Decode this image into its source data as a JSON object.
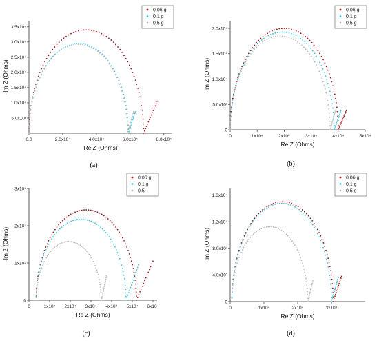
{
  "colors": {
    "series_006": "#a31414",
    "series_01": "#3cc3e4",
    "series_05": "#b8b8b8",
    "axis": "#333333"
  },
  "chart_data": [
    {
      "type": "scatter",
      "panel_label": "(a)",
      "xlabel": "Re Z (Ohms)",
      "ylabel": "-Im Z (Ohms)",
      "xlim": [
        0,
        85000
      ],
      "ylim": [
        0,
        37000
      ],
      "xticks": [
        0,
        20000,
        40000,
        60000,
        80000
      ],
      "xtick_labels": [
        "0.0",
        "2.0x10⁴",
        "4.0x10⁴",
        "6.0x10⁴",
        "8.0x10⁴"
      ],
      "yticks": [
        5000,
        10000,
        15000,
        20000,
        25000,
        30000,
        35000
      ],
      "ytick_labels": [
        "5.0x10³",
        "1.0x10⁴",
        "1.5x10⁴",
        "2.0x10⁴",
        "2.5x10⁴",
        "3.0x10⁴",
        "3.5x10⁴"
      ],
      "legend_position": "top-right",
      "series": [
        {
          "name": "0.06 g",
          "arc_start": 0,
          "arc_end": 68000,
          "tail_end": [
            76000,
            10500
          ]
        },
        {
          "name": "0.1 g",
          "arc_start": 0,
          "arc_end": 59000,
          "tail_end": [
            63000,
            7000
          ]
        },
        {
          "name": "0.5 g",
          "arc_start": 0,
          "arc_end": 58500,
          "tail_end": [
            62000,
            7000
          ]
        }
      ]
    },
    {
      "type": "scatter",
      "panel_label": "(b)",
      "xlabel": "Re Z (Ohms)",
      "ylabel": "-Im Z (Ohms)",
      "xlim": [
        0,
        50000
      ],
      "ylim": [
        0,
        21500
      ],
      "xticks": [
        0,
        10000,
        20000,
        30000,
        40000,
        50000
      ],
      "xtick_labels": [
        "0",
        "1x10⁴",
        "2x10⁴",
        "3x10⁴",
        "4x10⁴",
        "5x10⁴"
      ],
      "yticks": [
        0,
        5000,
        10000,
        15000,
        20000
      ],
      "ytick_labels": [
        "0",
        "5.0x10³",
        "1.0x10⁴",
        "1.5x10⁴",
        "2.0x10⁴"
      ],
      "legend_position": "top-right",
      "series": [
        {
          "name": "0.06 g",
          "arc_start": 0,
          "arc_end": 40000,
          "tail_end": [
            43000,
            3800
          ]
        },
        {
          "name": "0.1 g",
          "arc_start": 0,
          "arc_end": 38500,
          "tail_end": [
            41000,
            3800
          ]
        },
        {
          "name": "0.5 g",
          "arc_start": 0,
          "arc_end": 37000,
          "tail_end": [
            39000,
            3800
          ]
        }
      ]
    },
    {
      "type": "scatter",
      "panel_label": "(c)",
      "xlabel": "Re Z (Ohms)",
      "ylabel": "-Im Z (Ohms)",
      "xlim": [
        0,
        62000
      ],
      "ylim": [
        0,
        30000
      ],
      "xticks": [
        0,
        10000,
        20000,
        30000,
        40000,
        50000,
        60000
      ],
      "xtick_labels": [
        "0",
        "1x10⁴",
        "2x10⁴",
        "3x10⁴",
        "4x10⁴",
        "5x10⁴",
        "6x10⁴"
      ],
      "yticks": [
        0,
        10000,
        20000,
        30000
      ],
      "ytick_labels": [
        "0",
        "1x10⁴",
        "2x10⁴",
        "3x10⁴"
      ],
      "legend_position": "top-right",
      "series": [
        {
          "name": "0.06 g",
          "arc_start": 3500,
          "arc_end": 52000,
          "tail_end": [
            60000,
            10500
          ]
        },
        {
          "name": "0.1 g",
          "arc_start": 3500,
          "arc_end": 47000,
          "tail_end": [
            53000,
            9500
          ]
        },
        {
          "name": "0.5",
          "arc_start": 3500,
          "arc_end": 35000,
          "tail_end": [
            37500,
            6500
          ]
        }
      ]
    },
    {
      "type": "scatter",
      "panel_label": "(d)",
      "xlabel": "Re Z (Ohms)",
      "ylabel": "-Im Z (Ohms)",
      "xlim": [
        0,
        40000
      ],
      "ylim": [
        0,
        17000
      ],
      "xticks": [
        0,
        10000,
        20000,
        30000
      ],
      "xtick_labels": [
        "0",
        "1x10⁴",
        "2x10⁴",
        "3x10⁴"
      ],
      "yticks": [
        0,
        4000,
        8000,
        12000,
        16000
      ],
      "ytick_labels": [
        "0",
        "4.0x10³",
        "8.0x10³",
        "1.2x10⁴",
        "1.6x10⁴"
      ],
      "legend_position": "top-right",
      "series": [
        {
          "name": "0.06 g",
          "arc_start": 500,
          "arc_end": 30500,
          "tail_end": [
            33000,
            3800
          ]
        },
        {
          "name": "0.1 g",
          "arc_start": 500,
          "arc_end": 30000,
          "tail_end": [
            32000,
            3600
          ]
        },
        {
          "name": "0.5 g",
          "arc_start": 500,
          "arc_end": 23000,
          "tail_end": [
            24500,
            3200
          ]
        }
      ]
    }
  ]
}
